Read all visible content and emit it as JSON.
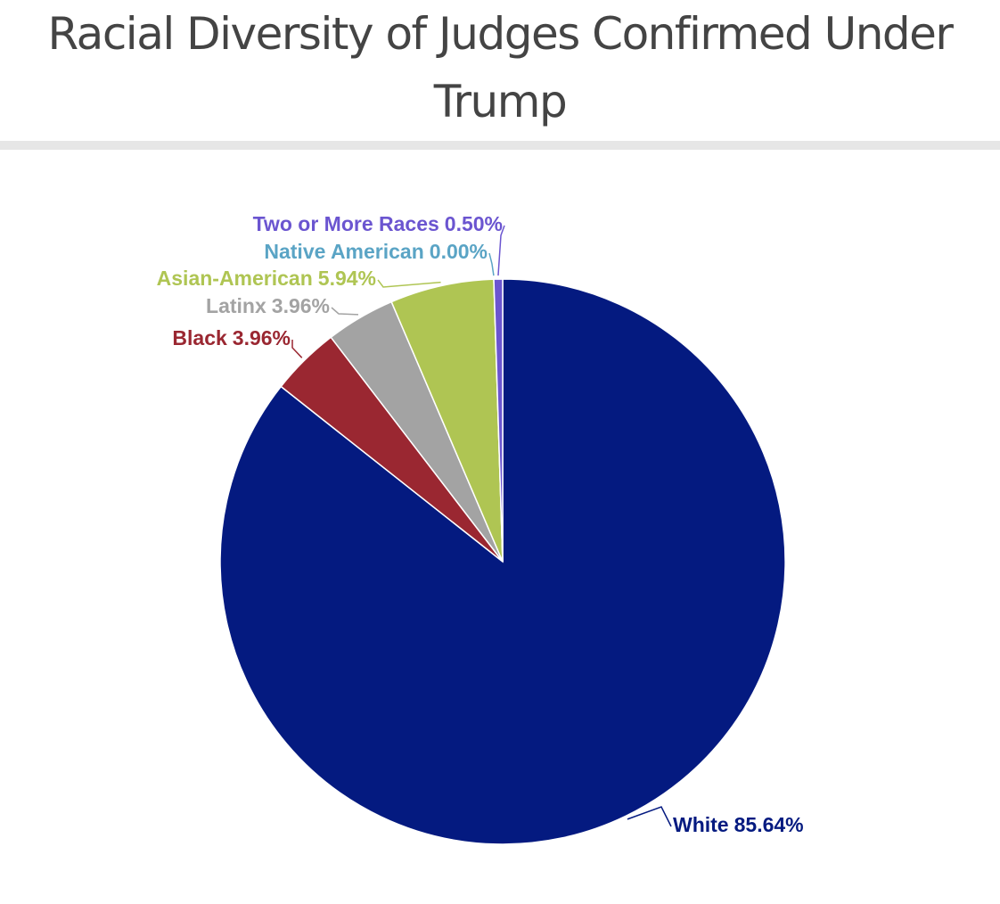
{
  "chart_data": {
    "type": "pie",
    "title": "Racial Diversity of Judges Confirmed Under Trump",
    "categories": [
      "White",
      "Black",
      "Latinx",
      "Asian-American",
      "Native American",
      "Two or More Races"
    ],
    "values": [
      85.64,
      3.96,
      3.96,
      5.94,
      0.0,
      0.5
    ],
    "value_labels": [
      "85.64%",
      "3.96%",
      "3.96%",
      "5.94%",
      "0.00%",
      "0.50%"
    ],
    "colors": [
      "#041a80",
      "#9a2731",
      "#a3a3a3",
      "#afc553",
      "#5aa4c5",
      "#6b55d0"
    ]
  }
}
